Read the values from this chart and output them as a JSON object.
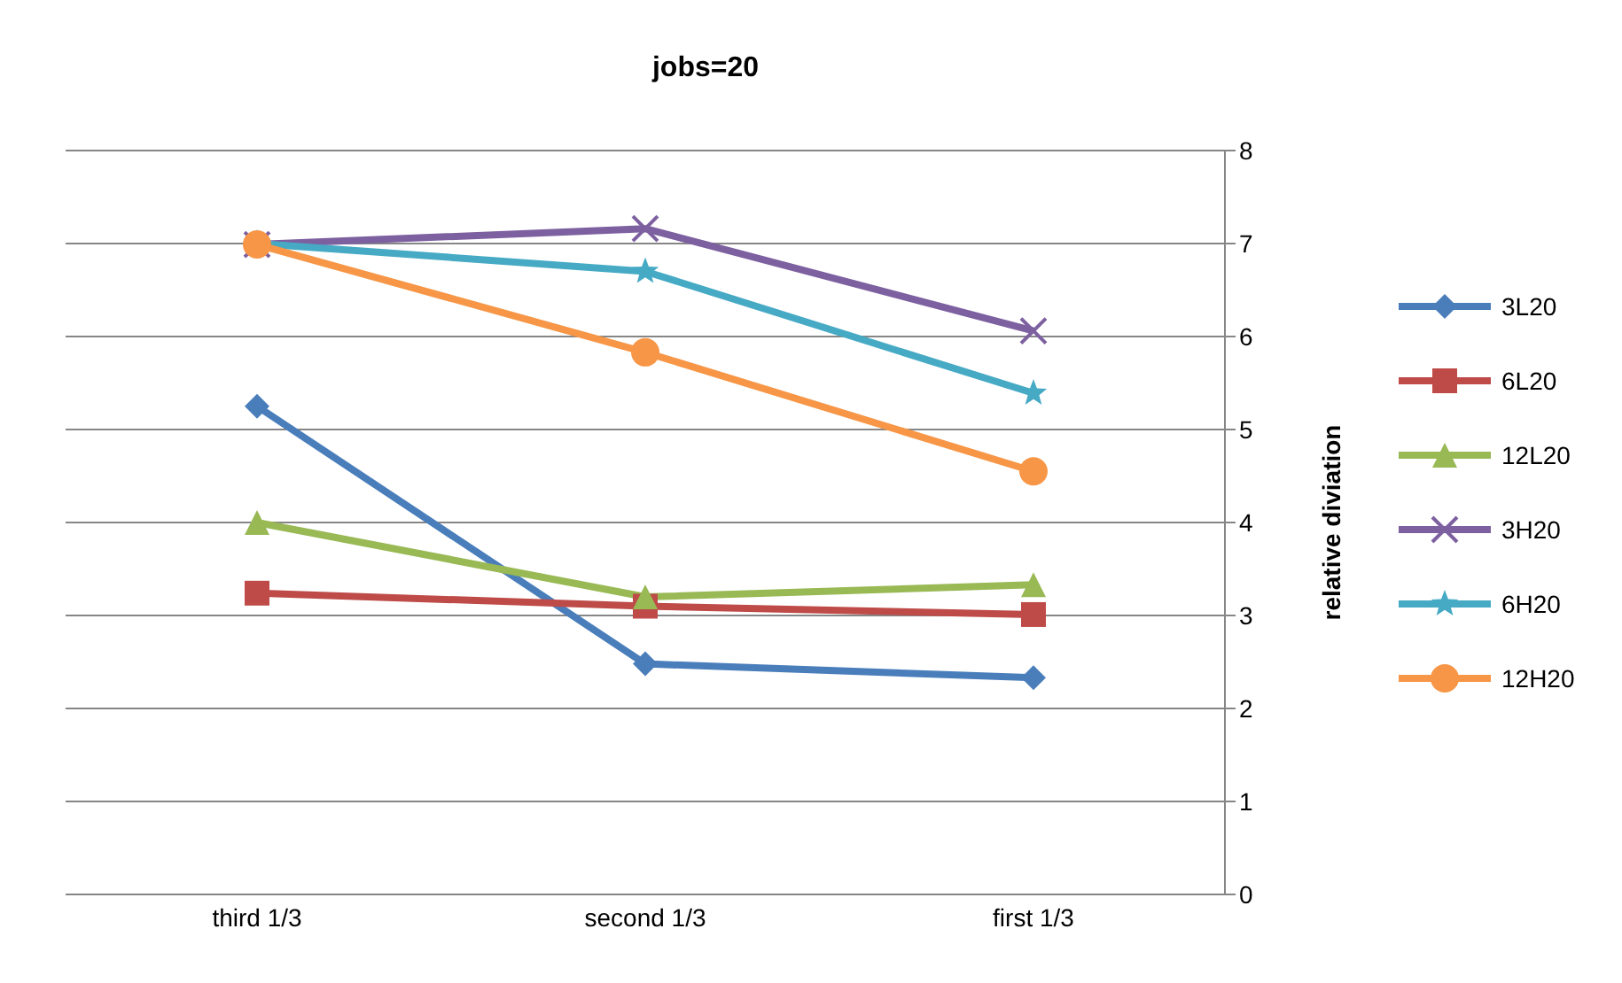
{
  "chart_data": {
    "type": "line",
    "title": "jobs=20",
    "ylabel": "relative diviation",
    "categories": [
      "third 1/3",
      "second 1/3",
      "first 1/3"
    ],
    "ylim": [
      0,
      8
    ],
    "yticks": [
      0,
      1,
      2,
      3,
      4,
      5,
      6,
      7,
      8
    ],
    "grid": "y",
    "legend": "right",
    "line_style": "solid",
    "series": [
      {
        "name": "3L20",
        "color": "#4a7ebb",
        "marker": "diamond",
        "values": [
          5.25,
          2.48,
          2.33
        ]
      },
      {
        "name": "6L20",
        "color": "#be4b48",
        "marker": "square",
        "values": [
          3.24,
          3.1,
          3.01
        ]
      },
      {
        "name": "12L20",
        "color": "#98b954",
        "marker": "triangle",
        "values": [
          4.0,
          3.2,
          3.33
        ]
      },
      {
        "name": "3H20",
        "color": "#7d60a0",
        "marker": "cross",
        "values": [
          6.99,
          7.16,
          6.06
        ]
      },
      {
        "name": "6H20",
        "color": "#46aac5",
        "marker": "star",
        "values": [
          7.0,
          6.7,
          5.39
        ]
      },
      {
        "name": "12H20",
        "color": "#f79646",
        "marker": "circle",
        "values": [
          6.99,
          5.83,
          4.55
        ]
      }
    ]
  }
}
